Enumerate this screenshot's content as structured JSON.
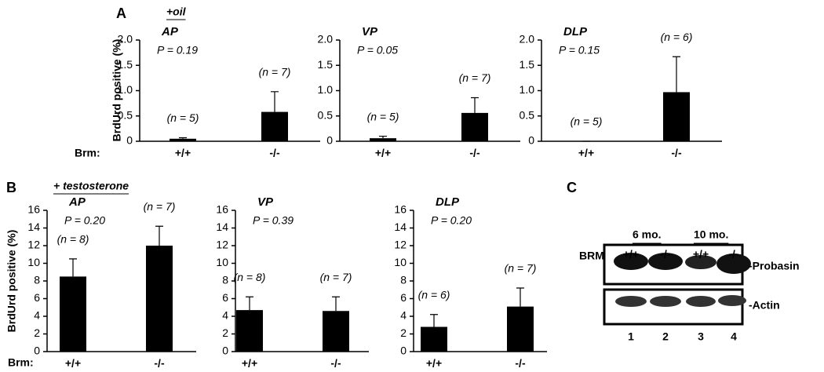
{
  "panels": [
    {
      "label": "A",
      "condition": "+oil",
      "y_label": "BrdUrd positive (%)",
      "group_label": "Brm:"
    },
    {
      "label": "B",
      "condition": "+ testosterone",
      "y_label": "BrdUrd positive (%)",
      "group_label": "Brm:"
    }
  ],
  "chart_data": [
    {
      "type": "bar",
      "title": "AP",
      "subtitle": "P = 0.19",
      "categories": [
        "+/+",
        "-/-"
      ],
      "values": [
        0.05,
        0.58
      ],
      "errors": [
        0.02,
        0.4
      ],
      "annotations": [
        "(n = 5)",
        "(n = 7)"
      ],
      "color": "#000000",
      "ylim": [
        0,
        2
      ],
      "yticks": [
        0,
        0.5,
        {
          "value": 1,
          "label": "1.0"
        },
        1.5,
        {
          "value": 2,
          "label": "2.0"
        }
      ],
      "grid": false
    },
    {
      "type": "bar",
      "title": "VP",
      "subtitle": "P = 0.05",
      "categories": [
        "+/+",
        "-/-"
      ],
      "values": [
        0.06,
        0.56
      ],
      "errors": [
        0.04,
        0.3
      ],
      "annotations": [
        "(n = 5)",
        "(n = 7)"
      ],
      "color": "#000000",
      "ylim": [
        0,
        2
      ],
      "yticks": [
        0,
        0.5,
        {
          "value": 1,
          "label": "1.0"
        },
        1.5,
        {
          "value": 2,
          "label": "2.0"
        }
      ],
      "grid": false
    },
    {
      "type": "bar",
      "title": "DLP",
      "subtitle": "P = 0.15",
      "categories": [
        "+/+",
        "-/-"
      ],
      "values": [
        0,
        0.97
      ],
      "errors": [
        0,
        0.7
      ],
      "annotations": [
        "(n = 5)",
        "(n = 6)"
      ],
      "color": "#000000",
      "ylim": [
        0,
        2
      ],
      "yticks": [
        0,
        0.5,
        {
          "value": 1,
          "label": "1.0"
        },
        1.5,
        {
          "value": 2,
          "label": "2.0"
        }
      ],
      "grid": false
    },
    {
      "type": "bar",
      "title": "AP",
      "subtitle": "P = 0.20",
      "categories": [
        "+/+",
        "-/-"
      ],
      "values": [
        8.5,
        12
      ],
      "errors": [
        2,
        2.2
      ],
      "annotations": [
        "(n = 8)",
        "(n = 7)"
      ],
      "color": "#000000",
      "ylim": [
        0,
        16
      ],
      "yticks": [
        0,
        2,
        4,
        6,
        8,
        10,
        12,
        14,
        16
      ],
      "grid": false
    },
    {
      "type": "bar",
      "title": "VP",
      "subtitle": "P = 0.39",
      "categories": [
        "+/+",
        "-/-"
      ],
      "values": [
        4.7,
        4.6
      ],
      "errors": [
        1.5,
        1.6
      ],
      "annotations": [
        "(n = 8)",
        "(n = 7)"
      ],
      "color": "#000000",
      "ylim": [
        0,
        16
      ],
      "yticks": [
        0,
        2,
        4,
        6,
        8,
        10,
        12,
        14,
        16
      ],
      "grid": false
    },
    {
      "type": "bar",
      "title": "DLP",
      "subtitle": "P = 0.20",
      "categories": [
        "+/+",
        "-/-"
      ],
      "values": [
        2.8,
        5.1
      ],
      "errors": [
        1.4,
        2.1
      ],
      "annotations": [
        "(n = 6)",
        "(n = 7)"
      ],
      "color": "#000000",
      "ylim": [
        0,
        16
      ],
      "yticks": [
        0,
        2,
        4,
        6,
        8,
        10,
        12,
        14,
        16
      ],
      "grid": false
    }
  ],
  "blot": {
    "label": "C",
    "ages": [
      "6 mo.",
      "10 mo."
    ],
    "row_label": "BRM",
    "genotypes": [
      "+/+",
      "-/-",
      "+/+",
      "-/-"
    ],
    "bands": [
      "-Probasin",
      "-Actin"
    ],
    "lanes": [
      "1",
      "2",
      "3",
      "4"
    ]
  }
}
